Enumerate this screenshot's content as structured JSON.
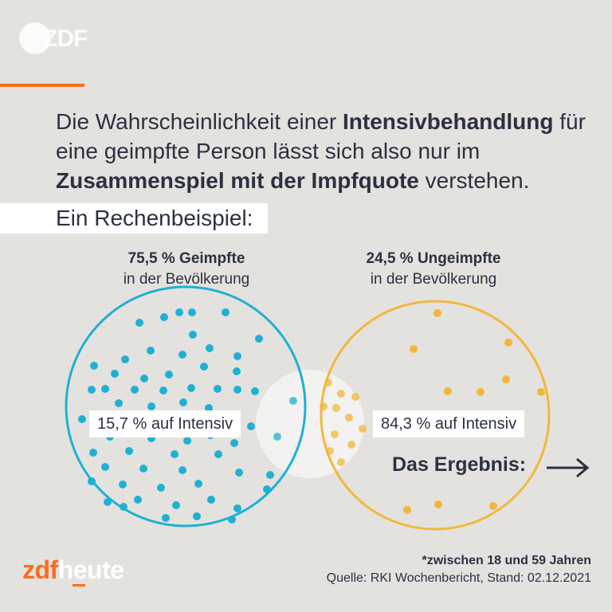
{
  "brand": {
    "logo_text": "ZDF",
    "product_prefix": "zdf",
    "product_suffix": "heute",
    "accent_color": "#ff6b1a"
  },
  "headline": {
    "part1": "Die Wahrscheinlichkeit einer ",
    "bold1": "Intensivbehandlung",
    "part2": " für eine geimpfte Person lässt sich also nur im ",
    "bold2": "Zusammenspiel mit der Impfquote",
    "part3": " verstehen."
  },
  "example_label": "Ein Rechenbeispiel:",
  "groups": {
    "vaccinated": {
      "title": "75,5 % Geimpfte",
      "subtitle": "in der Bevölkerung",
      "intensiv_label": "15,7 % auf Intensiv",
      "color": "#1fb0d4"
    },
    "unvaccinated": {
      "title": "24,5 % Ungeimpfte",
      "subtitle": "in der Bevölkerung",
      "intensiv_label": "84,3 % auf Intensiv",
      "color": "#f2b73a"
    }
  },
  "result_label": "Das Ergebnis:",
  "footnote": "*zwischen 18 und 59 Jahren",
  "source": "Quelle: RKI Wochenbericht, Stand: 02.12.2021"
}
